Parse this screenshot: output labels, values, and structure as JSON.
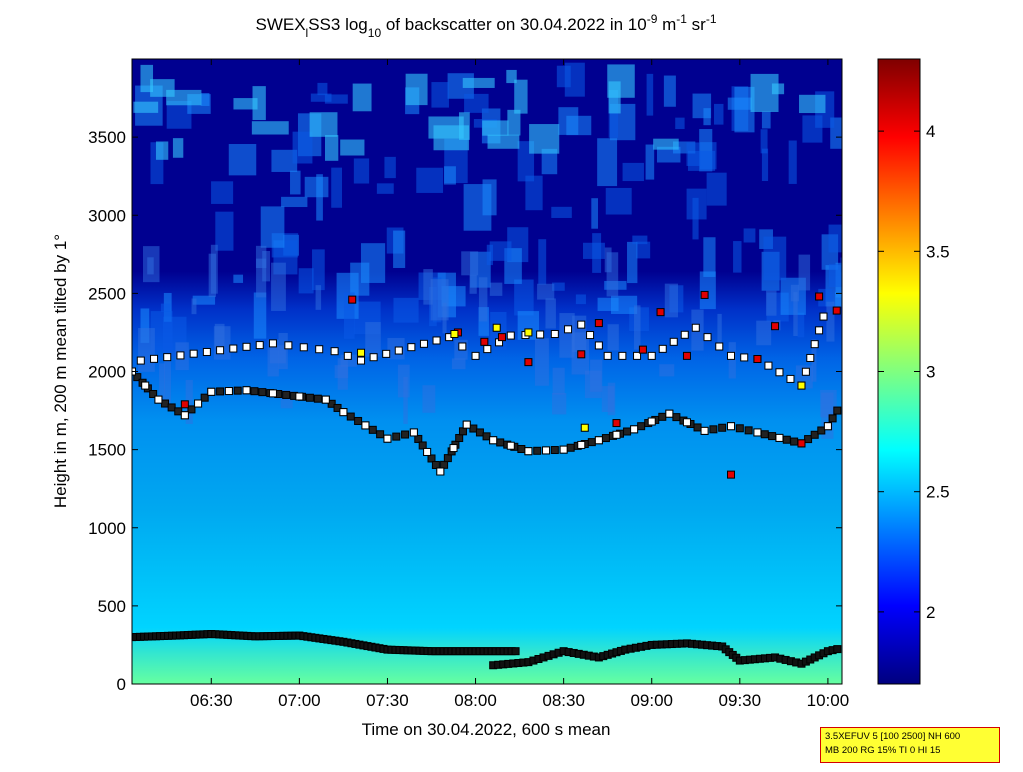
{
  "chart_data": {
    "type": "heatmap",
    "title": {
      "prefix": "SWEX",
      "sub_l": "l",
      "mid": "SS3 log",
      "sub_10": "10",
      "after": " of backscatter on 30.04.2022 in 10",
      "sup_1": "-9",
      "unit_m": " m",
      "sup_2": "-1",
      "unit_sr": " sr",
      "sup_3": "-1"
    },
    "xlabel": "Time on 30.04.2022, 600 s mean",
    "ylabel": "Height in m, 200 m mean tilted by 1°",
    "x_ticks": [
      "06:30",
      "07:00",
      "07:30",
      "08:00",
      "08:30",
      "09:00",
      "09:30",
      "10:00"
    ],
    "x_tick_hours": [
      6.5,
      7.0,
      7.5,
      8.0,
      8.5,
      9.0,
      9.5,
      10.0
    ],
    "xlim_hours": [
      6.05,
      10.08
    ],
    "y_ticks": [
      "0",
      "500",
      "1000",
      "1500",
      "2000",
      "2500",
      "3000",
      "3500"
    ],
    "y_tick_values": [
      0,
      500,
      1000,
      1500,
      2000,
      2500,
      3000,
      3500
    ],
    "ylim": [
      0,
      4000
    ],
    "colorbar": {
      "ticks": [
        "2",
        "2.5",
        "3",
        "3.5",
        "4"
      ],
      "tick_values": [
        2,
        2.5,
        3,
        3.5,
        4
      ],
      "clim": [
        1.7,
        4.3
      ]
    },
    "grid": false,
    "colors": {
      "low": "#00007f",
      "mid_low": "#0080ff",
      "mid": "#00ffff",
      "mid_high": "#ffff00",
      "high": "#7f0000"
    },
    "marker_series": {
      "surface_layer": {
        "x": [
          6.05,
          6.3,
          6.5,
          6.75,
          7.0,
          7.25,
          7.5,
          7.75,
          8.0,
          8.25
        ],
        "y": [
          300,
          310,
          320,
          305,
          310,
          270,
          220,
          210,
          210,
          210
        ]
      },
      "lower_layer": {
        "x": [
          8.1,
          8.3,
          8.5,
          8.7,
          8.85,
          9.0,
          9.2,
          9.4,
          9.5,
          9.7,
          9.85,
          10.0,
          10.08
        ],
        "y": [
          120,
          140,
          210,
          170,
          220,
          250,
          260,
          240,
          150,
          170,
          130,
          210,
          230
        ]
      },
      "mid_layer": {
        "x": [
          6.05,
          6.2,
          6.35,
          6.5,
          6.7,
          7.15,
          7.25,
          7.5,
          7.65,
          7.8,
          7.95,
          8.1,
          8.3,
          8.5,
          8.7,
          8.9,
          9.1,
          9.3,
          9.45,
          9.6,
          9.85,
          10.0,
          10.08
        ],
        "y": [
          2000,
          1820,
          1720,
          1870,
          1880,
          1820,
          1740,
          1570,
          1610,
          1360,
          1660,
          1560,
          1490,
          1500,
          1560,
          1630,
          1730,
          1620,
          1650,
          1610,
          1540,
          1650,
          1800
        ]
      },
      "upper_layer": {
        "x": [
          6.1,
          6.85,
          7.2,
          7.35,
          7.85,
          8.0,
          8.2,
          8.45,
          8.6,
          8.75,
          9.0,
          9.25,
          9.45,
          9.6,
          9.85,
          10.0
        ],
        "y": [
          2070,
          2180,
          2130,
          2070,
          2220,
          2100,
          2230,
          2240,
          2300,
          2100,
          2100,
          2280,
          2100,
          2080,
          1910,
          2440
        ]
      },
      "red_points": {
        "x": [
          6.35,
          7.3,
          7.9,
          8.05,
          8.15,
          8.3,
          8.6,
          8.7,
          8.8,
          8.95,
          9.05,
          9.2,
          9.3,
          9.45,
          9.6,
          9.7,
          9.85,
          9.95,
          10.05
        ],
        "y": [
          1790,
          2460,
          2250,
          2190,
          2220,
          2060,
          2110,
          2310,
          1670,
          2140,
          2380,
          2100,
          2490,
          1340,
          2080,
          2290,
          1540,
          2480,
          2390
        ]
      },
      "yellow_points": {
        "x": [
          7.35,
          7.88,
          8.12,
          8.3,
          8.62,
          9.85
        ],
        "y": [
          2120,
          2240,
          2280,
          2250,
          1640,
          1910
        ]
      }
    }
  },
  "info_box": {
    "line1": "3.5XEFUV 5 [100 2500] NH 600",
    "line2": "MB 200 RG 15% TI 0 HI 15"
  }
}
